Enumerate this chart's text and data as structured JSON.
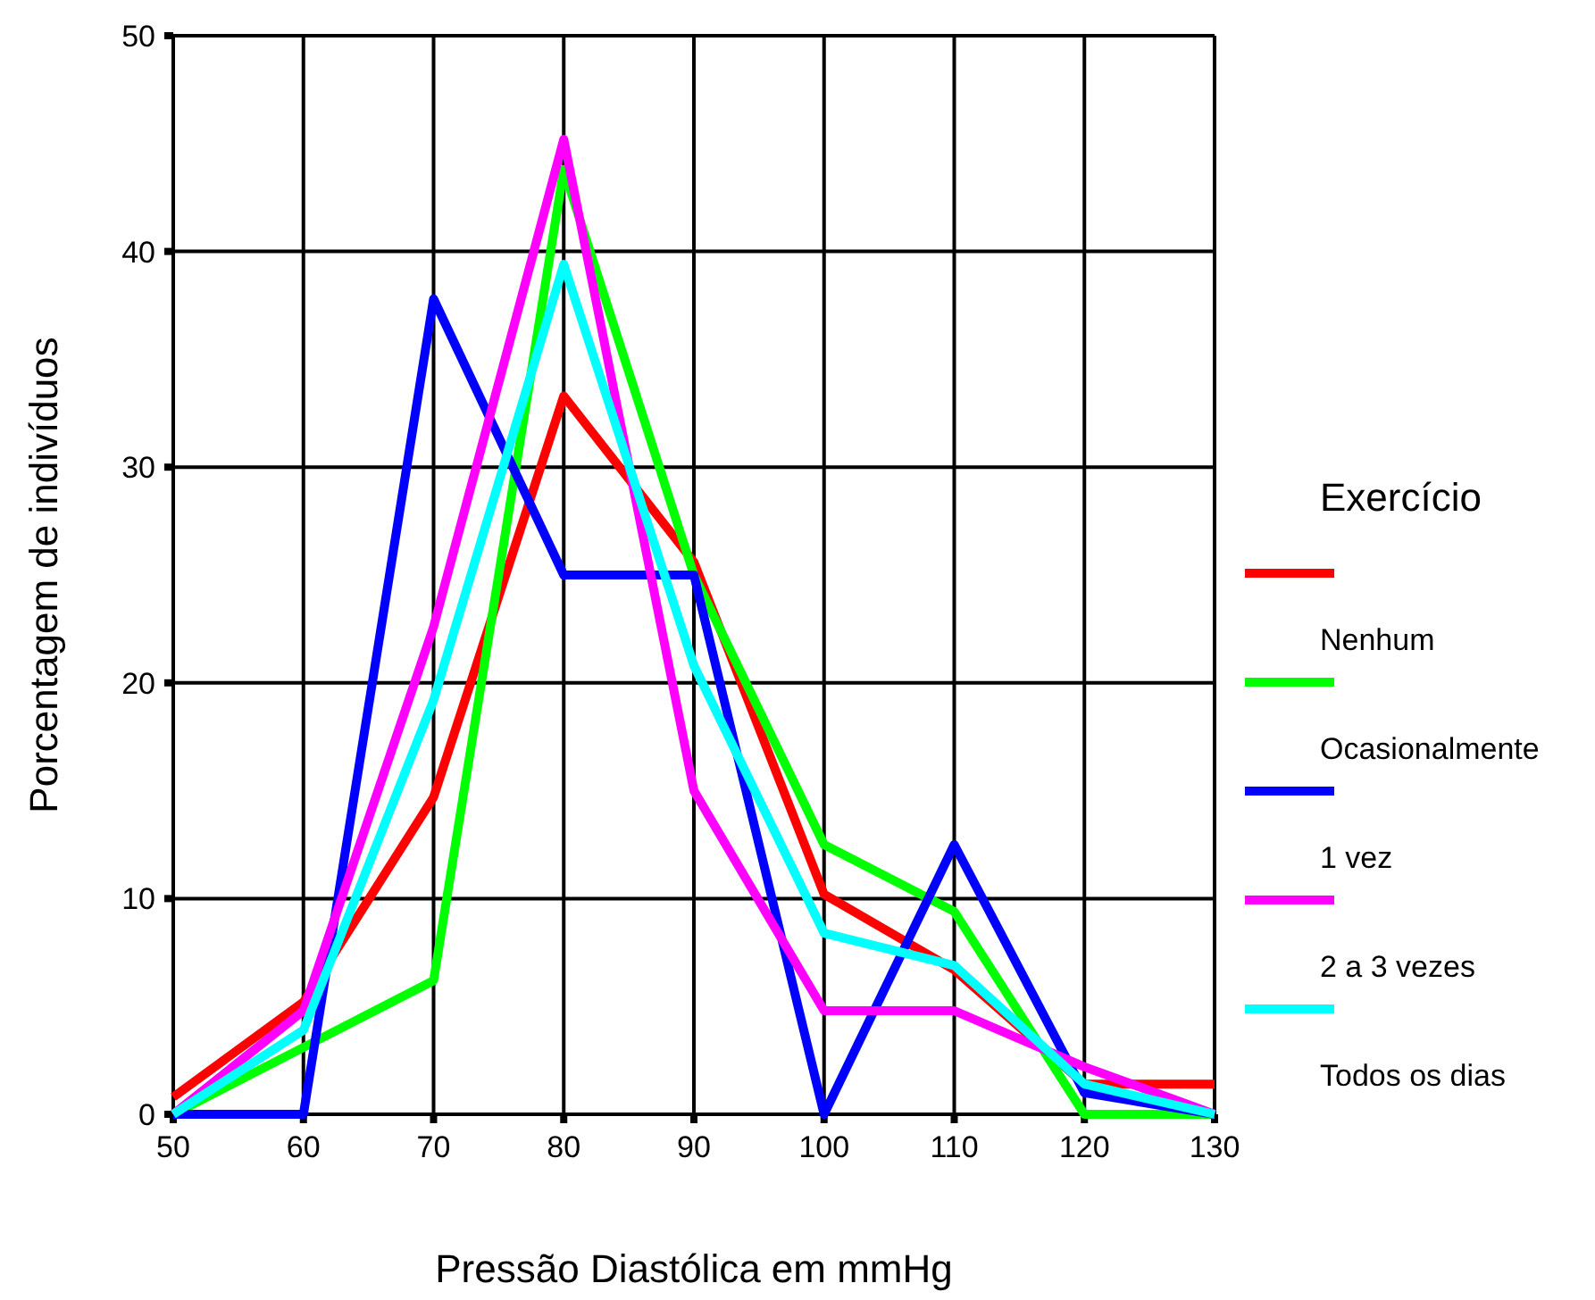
{
  "chart_data": {
    "type": "line",
    "xlabel": "Pressão Diastólica em mmHg",
    "ylabel": "Porcentagem de indivíduos",
    "legend_title": "Exercício",
    "legend": "right",
    "grid": true,
    "line_style": "solid",
    "x": [
      50,
      60,
      70,
      80,
      90,
      100,
      110,
      120,
      130
    ],
    "xlim": [
      50,
      130
    ],
    "xticks": [
      50,
      60,
      70,
      80,
      90,
      100,
      110,
      120,
      130
    ],
    "ylim": [
      0,
      50
    ],
    "yticks": [
      0,
      10,
      20,
      30,
      40,
      50
    ],
    "series": [
      {
        "name": "Nenhum",
        "color": "#ff0000",
        "values": [
          0.8,
          5.2,
          14.7,
          33.3,
          25.6,
          10.2,
          6.7,
          1.4,
          1.4
        ]
      },
      {
        "name": "Ocasionalmente",
        "color": "#00ff00",
        "values": [
          0,
          3.1,
          6.2,
          43.8,
          25,
          12.5,
          9.4,
          0,
          0
        ]
      },
      {
        "name": "1 vez",
        "color": "#0000ff",
        "values": [
          0,
          0,
          37.8,
          25,
          25,
          0,
          12.5,
          1,
          0
        ]
      },
      {
        "name": "2 a 3 vezes",
        "color": "#ff00ff",
        "values": [
          0,
          4.8,
          22.6,
          45.2,
          15,
          4.8,
          4.8,
          2.2,
          0
        ]
      },
      {
        "name": "Todos os dias",
        "color": "#00ffff",
        "values": [
          0,
          3.9,
          19.2,
          39.4,
          20.8,
          8.4,
          6.9,
          1.4,
          0
        ]
      }
    ]
  }
}
